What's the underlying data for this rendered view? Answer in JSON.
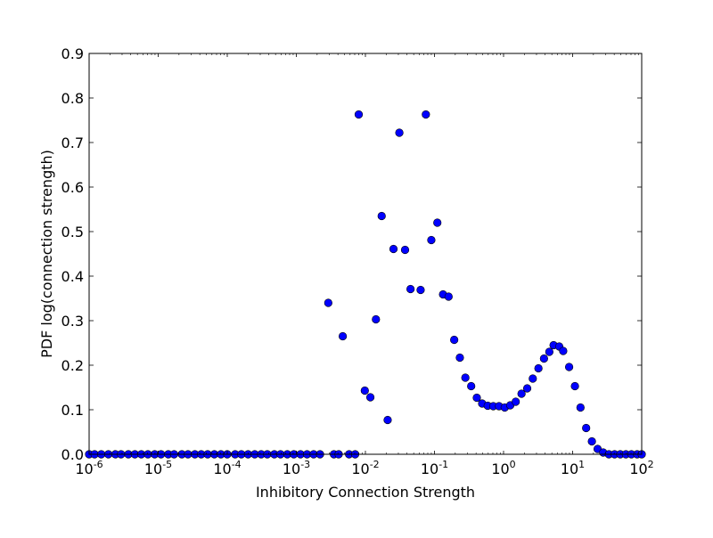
{
  "chart_data": {
    "type": "scatter",
    "title": "",
    "xlabel": "Inhibitory Connection Strength",
    "ylabel": "PDF log(connection strength)",
    "xscale": "log",
    "xlim": [
      1e-06,
      100
    ],
    "ylim": [
      0,
      0.9
    ],
    "grid": false,
    "marker_color": "#0000ff",
    "x_ticks": [
      {
        "value": 1e-06,
        "base": "10",
        "exp": "-6"
      },
      {
        "value": 1e-05,
        "base": "10",
        "exp": "-5"
      },
      {
        "value": 0.0001,
        "base": "10",
        "exp": "-4"
      },
      {
        "value": 0.001,
        "base": "10",
        "exp": "-3"
      },
      {
        "value": 0.01,
        "base": "10",
        "exp": "-2"
      },
      {
        "value": 0.1,
        "base": "10",
        "exp": "-1"
      },
      {
        "value": 1,
        "base": "10",
        "exp": "0"
      },
      {
        "value": 10,
        "base": "10",
        "exp": "1"
      },
      {
        "value": 100,
        "base": "10",
        "exp": "2"
      }
    ],
    "y_ticks": [
      {
        "value": 0.0,
        "label": "0.0"
      },
      {
        "value": 0.1,
        "label": "0.1"
      },
      {
        "value": 0.2,
        "label": "0.2"
      },
      {
        "value": 0.3,
        "label": "0.3"
      },
      {
        "value": 0.4,
        "label": "0.4"
      },
      {
        "value": 0.5,
        "label": "0.5"
      },
      {
        "value": 0.6,
        "label": "0.6"
      },
      {
        "value": 0.7,
        "label": "0.7"
      },
      {
        "value": 0.8,
        "label": "0.8"
      },
      {
        "value": 0.9,
        "label": "0.9"
      }
    ],
    "series": [
      {
        "points": [
          [
            1e-06,
            0.0
          ],
          [
            1.2e-06,
            0.0
          ],
          [
            1.5e-06,
            0.0
          ],
          [
            1.9e-06,
            0.0
          ],
          [
            2.4e-06,
            0.0
          ],
          [
            2.9e-06,
            0.0
          ],
          [
            3.7e-06,
            0.0
          ],
          [
            4.6e-06,
            0.0
          ],
          [
            5.7e-06,
            0.0
          ],
          [
            7.1e-06,
            0.0
          ],
          [
            8.9e-06,
            0.0
          ],
          [
            1.1e-05,
            0.0
          ],
          [
            1.4e-05,
            0.0
          ],
          [
            1.7e-05,
            0.0
          ],
          [
            2.2e-05,
            0.0
          ],
          [
            2.7e-05,
            0.0
          ],
          [
            3.4e-05,
            0.0
          ],
          [
            4.2e-05,
            0.0
          ],
          [
            5.2e-05,
            0.0
          ],
          [
            6.5e-05,
            0.0
          ],
          [
            8.1e-05,
            0.0
          ],
          [
            0.0001,
            0.0
          ],
          [
            0.00013,
            0.0
          ],
          [
            0.00016,
            0.0
          ],
          [
            0.0002,
            0.0
          ],
          [
            0.00025,
            0.0
          ],
          [
            0.00031,
            0.0
          ],
          [
            0.00038,
            0.0
          ],
          [
            0.00048,
            0.0
          ],
          [
            0.00059,
            0.0
          ],
          [
            0.00074,
            0.0
          ],
          [
            0.00092,
            0.0
          ],
          [
            0.00115,
            0.0
          ],
          [
            0.00143,
            0.0
          ],
          [
            0.00178,
            0.0
          ],
          [
            0.0022,
            0.0
          ],
          [
            0.0029,
            0.34
          ],
          [
            0.0035,
            0.0
          ],
          [
            0.0041,
            0.0
          ],
          [
            0.0047,
            0.265
          ],
          [
            0.0058,
            0.0
          ],
          [
            0.0071,
            0.0
          ],
          [
            0.008,
            0.763
          ],
          [
            0.0098,
            0.143
          ],
          [
            0.0118,
            0.128
          ],
          [
            0.0142,
            0.303
          ],
          [
            0.0172,
            0.535
          ],
          [
            0.021,
            0.077
          ],
          [
            0.0255,
            0.461
          ],
          [
            0.031,
            0.722
          ],
          [
            0.0375,
            0.459
          ],
          [
            0.045,
            0.371
          ],
          [
            0.063,
            0.369
          ],
          [
            0.075,
            0.763
          ],
          [
            0.09,
            0.481
          ],
          [
            0.11,
            0.52
          ],
          [
            0.133,
            0.359
          ],
          [
            0.16,
            0.354
          ],
          [
            0.193,
            0.257
          ],
          [
            0.233,
            0.217
          ],
          [
            0.28,
            0.172
          ],
          [
            0.34,
            0.153
          ],
          [
            0.41,
            0.127
          ],
          [
            0.49,
            0.114
          ],
          [
            0.59,
            0.109
          ],
          [
            0.71,
            0.108
          ],
          [
            0.86,
            0.108
          ],
          [
            1.04,
            0.105
          ],
          [
            1.25,
            0.11
          ],
          [
            1.5,
            0.118
          ],
          [
            1.82,
            0.136
          ],
          [
            2.2,
            0.148
          ],
          [
            2.65,
            0.17
          ],
          [
            3.2,
            0.193
          ],
          [
            3.85,
            0.215
          ],
          [
            4.6,
            0.23
          ],
          [
            5.3,
            0.245
          ],
          [
            6.4,
            0.242
          ],
          [
            7.3,
            0.232
          ],
          [
            8.9,
            0.196
          ],
          [
            10.8,
            0.153
          ],
          [
            13.0,
            0.105
          ],
          [
            15.7,
            0.059
          ],
          [
            19.0,
            0.029
          ],
          [
            23.0,
            0.012
          ],
          [
            27.7,
            0.004
          ],
          [
            33.5,
            0.0
          ],
          [
            40.5,
            0.0
          ],
          [
            49,
            0.0
          ],
          [
            59,
            0.0
          ],
          [
            71,
            0.0
          ],
          [
            86,
            0.0
          ],
          [
            100,
            0.0
          ]
        ]
      }
    ]
  }
}
